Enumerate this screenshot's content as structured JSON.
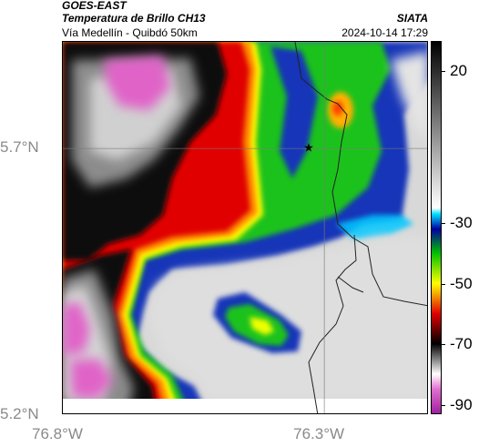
{
  "header": {
    "agency": "GOES-EAST",
    "product": "Temperatura de Brillo CH13",
    "organization": "SIATA",
    "region": "Vía Medellín - Quibdó 50km",
    "timestamp": "2024-10-14 17:29"
  },
  "map": {
    "lon_range": [
      -76.8,
      -76.1
    ],
    "lat_range": [
      5.2,
      5.9
    ],
    "x_ticks": [
      {
        "value": -76.8,
        "label": "76.8°W"
      },
      {
        "value": -76.3,
        "label": "76.3°W"
      }
    ],
    "y_ticks": [
      {
        "value": 5.7,
        "label": "5.7°N"
      },
      {
        "value": 5.2,
        "label": "5.2°N"
      }
    ],
    "grid": true,
    "marker": {
      "name": "star-marker",
      "lon": -76.33,
      "lat": 5.7
    },
    "colors": {
      "magenta": "#e064c8",
      "grey_warm": "#d4d4d4",
      "black": "#0a0a0a",
      "red": "#e00000",
      "orange": "#ff7a00",
      "yellow": "#ffff00",
      "green": "#1fc21f",
      "blue": "#1030b0",
      "cyan": "#00c8ff"
    }
  },
  "colorbar": {
    "range": [
      -93,
      30
    ],
    "ticks": [
      {
        "value": 20,
        "label": "20"
      },
      {
        "value": -30,
        "label": "-30"
      },
      {
        "value": -50,
        "label": "-50"
      },
      {
        "value": -70,
        "label": "-70"
      },
      {
        "value": -90,
        "label": "-90"
      }
    ],
    "stops": [
      {
        "value": -93,
        "color": "#a020a0"
      },
      {
        "value": -85,
        "color": "#e070d0"
      },
      {
        "value": -80,
        "color": "#ffffff"
      },
      {
        "value": -75,
        "color": "#808080"
      },
      {
        "value": -70,
        "color": "#000000"
      },
      {
        "value": -60,
        "color": "#e00000"
      },
      {
        "value": -50,
        "color": "#ffff00"
      },
      {
        "value": -40,
        "color": "#00c000"
      },
      {
        "value": -32,
        "color": "#0000a0"
      },
      {
        "value": -27,
        "color": "#00e0ff"
      },
      {
        "value": -25,
        "color": "#ffffff"
      },
      {
        "value": 30,
        "color": "#000000"
      }
    ]
  }
}
